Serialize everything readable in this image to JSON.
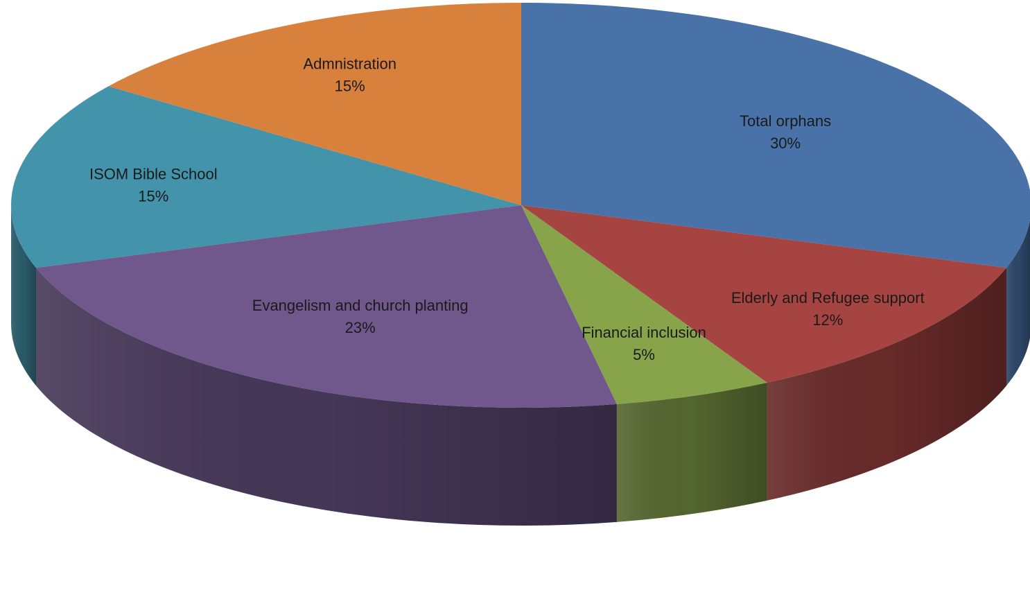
{
  "chart_data": {
    "type": "pie",
    "style": "3d",
    "title": "",
    "show_legend": false,
    "slices": [
      {
        "label": "Total orphans",
        "value": 30,
        "value_label": "30%",
        "color": "#4872a8"
      },
      {
        "label": "Elderly and Refugee support",
        "value": 12,
        "value_label": "12%",
        "color": "#a64442"
      },
      {
        "label": "Financial inclusion",
        "value": 5,
        "value_label": "5%",
        "color": "#87a44b"
      },
      {
        "label": "Evangelism and church planting",
        "value": 23,
        "value_label": "23%",
        "color": "#70588d"
      },
      {
        "label": "ISOM Bible School",
        "value": 15,
        "value_label": "15%",
        "color": "#4393ab"
      },
      {
        "label": "Admnistration",
        "value": 15,
        "value_label": "15%",
        "color": "#d8813d"
      }
    ]
  }
}
